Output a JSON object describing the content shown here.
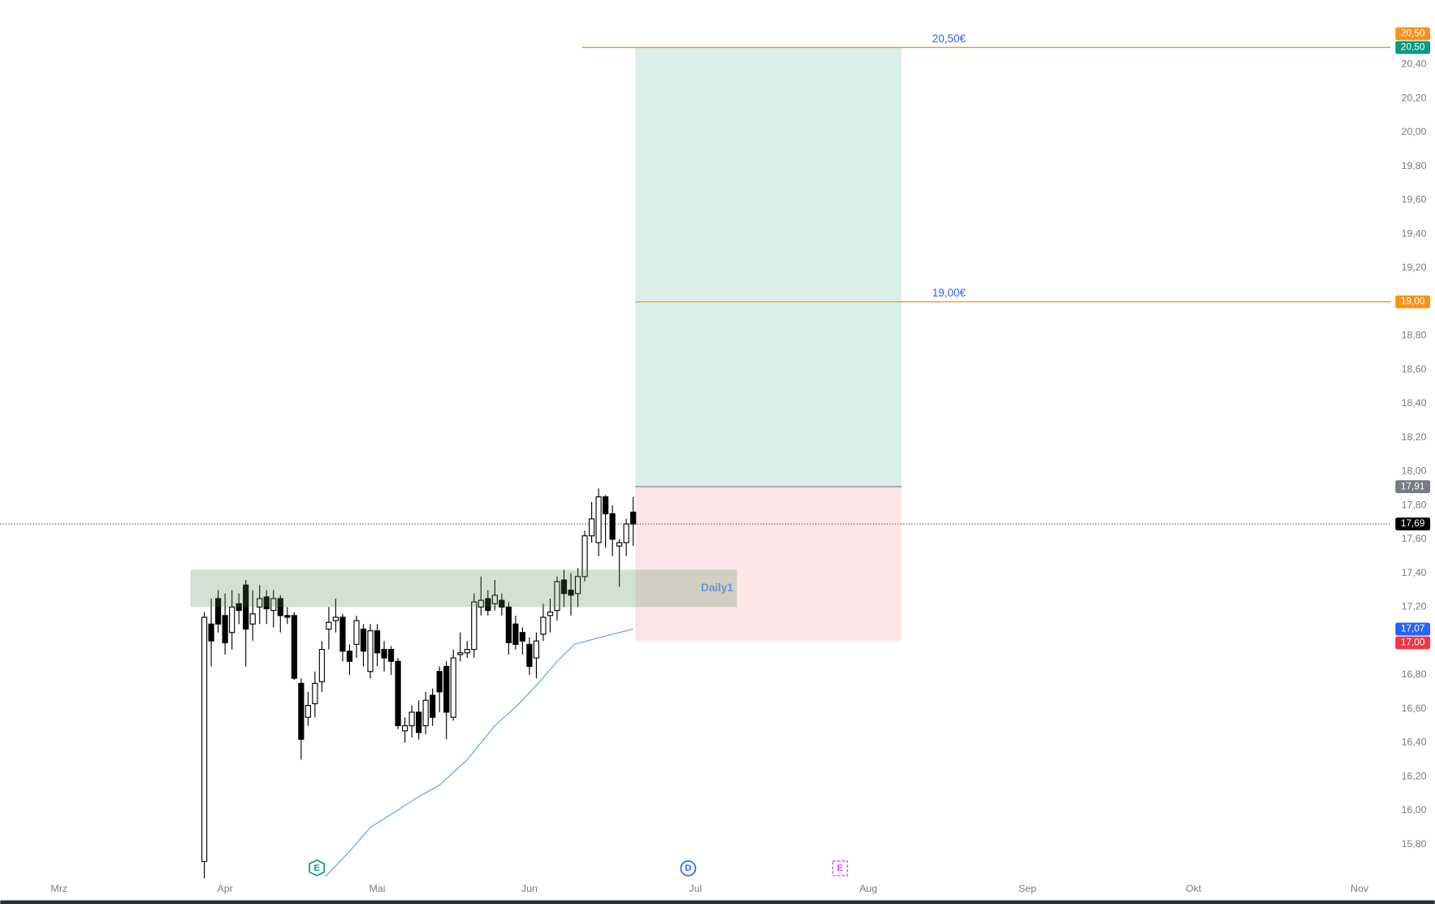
{
  "chart_data": {
    "type": "candlestick",
    "x": [
      21,
      22,
      23,
      24,
      25,
      26,
      27,
      28,
      29,
      30,
      31,
      32,
      33,
      34,
      35,
      36,
      37,
      38,
      39,
      40,
      41,
      42,
      43,
      44,
      45,
      46,
      47,
      48,
      49,
      50,
      51,
      52,
      53,
      54,
      55,
      56,
      57,
      58,
      59,
      60,
      61,
      62,
      63,
      64,
      65,
      66,
      67,
      68,
      69,
      70,
      71,
      72,
      73,
      74,
      75,
      76,
      77,
      78,
      79,
      80,
      81,
      82,
      83
    ],
    "open": [
      15.7,
      17.1,
      17.25,
      17.15,
      17.05,
      17.22,
      17.33,
      17.1,
      17.2,
      17.26,
      17.18,
      17.25,
      17.15,
      17.15,
      16.75,
      16.55,
      16.63,
      16.76,
      17.07,
      17.12,
      17.14,
      16.94,
      16.98,
      17.07,
      16.82,
      17.06,
      16.95,
      16.95,
      16.88,
      16.47,
      16.5,
      16.58,
      16.5,
      16.68,
      16.82,
      16.85,
      16.55,
      16.92,
      16.93,
      16.95,
      17.2,
      17.25,
      17.22,
      17.24,
      17.2,
      17.1,
      17.05,
      16.98,
      16.9,
      17.04,
      17.15,
      17.18,
      17.36,
      17.3,
      17.28,
      17.38,
      17.62,
      17.58,
      17.85,
      17.75,
      17.56,
      17.58,
      17.76
    ],
    "high": [
      17.17,
      17.25,
      17.3,
      17.28,
      17.3,
      17.28,
      17.36,
      17.3,
      17.33,
      17.3,
      17.3,
      17.27,
      17.2,
      17.17,
      16.78,
      16.7,
      16.82,
      17.0,
      17.2,
      17.25,
      17.16,
      16.98,
      17.15,
      17.1,
      17.1,
      17.1,
      17.0,
      16.97,
      16.9,
      16.55,
      16.62,
      16.65,
      16.7,
      16.72,
      16.85,
      16.88,
      16.95,
      17.05,
      17.0,
      17.28,
      17.38,
      17.3,
      17.36,
      17.28,
      17.23,
      17.15,
      17.08,
      17.02,
      17.05,
      17.22,
      17.25,
      17.38,
      17.42,
      17.4,
      17.43,
      17.65,
      17.82,
      17.9,
      17.86,
      17.8,
      17.6,
      17.72,
      17.85
    ],
    "low": [
      15.6,
      16.85,
      17.05,
      16.92,
      16.95,
      17.1,
      16.85,
      17.0,
      17.1,
      17.1,
      17.08,
      17.05,
      17.1,
      16.77,
      16.3,
      16.5,
      16.55,
      16.7,
      16.95,
      17.05,
      16.88,
      16.8,
      16.9,
      16.85,
      16.78,
      16.85,
      16.82,
      16.8,
      16.48,
      16.4,
      16.43,
      16.42,
      16.45,
      16.5,
      16.58,
      16.42,
      16.53,
      16.88,
      16.9,
      16.9,
      17.15,
      17.15,
      17.18,
      17.15,
      16.92,
      16.95,
      16.92,
      16.8,
      16.78,
      17.0,
      17.05,
      17.12,
      17.2,
      17.15,
      17.2,
      17.35,
      17.58,
      17.5,
      17.55,
      17.5,
      17.32,
      17.5,
      17.56
    ],
    "close": [
      17.14,
      17.0,
      17.1,
      16.99,
      17.2,
      17.18,
      17.07,
      17.16,
      17.25,
      17.19,
      17.25,
      17.15,
      17.14,
      16.78,
      16.42,
      16.62,
      16.75,
      16.95,
      17.11,
      17.14,
      16.94,
      16.88,
      17.12,
      16.94,
      17.06,
      16.93,
      16.9,
      16.88,
      16.5,
      16.5,
      16.58,
      16.46,
      16.65,
      16.55,
      16.7,
      16.58,
      16.9,
      16.93,
      16.95,
      17.23,
      17.24,
      17.18,
      17.27,
      17.2,
      16.99,
      16.98,
      17.0,
      16.85,
      17.0,
      17.14,
      17.17,
      17.35,
      17.28,
      17.27,
      17.38,
      17.62,
      17.72,
      17.85,
      17.75,
      17.6,
      17.58,
      17.69,
      17.69
    ],
    "moving_average": {
      "color": "#5b9cf6",
      "x": [
        38.5,
        42,
        45,
        48.5,
        51.5,
        55,
        59,
        63,
        66.5,
        69.5,
        72,
        74.5,
        79,
        83
      ],
      "values": [
        15.61,
        15.76,
        15.9,
        15.99,
        16.07,
        16.15,
        16.3,
        16.5,
        16.63,
        16.76,
        16.88,
        16.98,
        17.03,
        17.07
      ]
    },
    "zones": [
      {
        "name": "Daily1",
        "x": [
          19,
          98
        ],
        "ylim": [
          17.2,
          17.42
        ]
      }
    ],
    "position": {
      "x": [
        83.3,
        121.8
      ],
      "entry": 17.91,
      "target": 20.5,
      "stop": 17.0
    },
    "hlines": [
      {
        "value": 20.5,
        "label": "20,50€",
        "x": 75.6
      },
      {
        "value": 19.0,
        "label": "19,00€",
        "x": 83.3
      }
    ],
    "last_price": 17.69,
    "price_tags": [
      {
        "value": 20.5,
        "label": "20,50",
        "color": "#089981"
      },
      {
        "value": 20.5,
        "label": "20,50",
        "color": "#f7931a"
      },
      {
        "value": 19.0,
        "label": "19,00",
        "color": "#f7931a"
      },
      {
        "value": 17.91,
        "label": "17,91",
        "color": "#787b86"
      },
      {
        "value": 17.69,
        "label": "17,69",
        "color": "#000000"
      },
      {
        "value": 17.07,
        "label": "17,07",
        "color": "#2962ff"
      },
      {
        "value": 17.0,
        "label": "17,00",
        "color": "#f23645"
      }
    ],
    "event_markers": [
      "E",
      "D",
      "E"
    ],
    "xlim": [
      -8.5,
      192
    ],
    "xticks": [
      {
        "value": 0,
        "label": "Mrz"
      },
      {
        "value": 24,
        "label": "Apr"
      },
      {
        "value": 46,
        "label": "Mai"
      },
      {
        "value": 68,
        "label": "Jun"
      },
      {
        "value": 92,
        "label": "Jul"
      },
      {
        "value": 117,
        "label": "Aug"
      },
      {
        "value": 140,
        "label": "Sep"
      },
      {
        "value": 164,
        "label": "Okt"
      },
      {
        "value": 188,
        "label": "Nov"
      }
    ],
    "ylim": [
      15.6,
      20.78
    ],
    "yticks": [
      {
        "value": 15.8,
        "label": "15,80"
      },
      {
        "value": 16.0,
        "label": "16,00"
      },
      {
        "value": 16.2,
        "label": "16,20"
      },
      {
        "value": 16.4,
        "label": "16,40"
      },
      {
        "value": 16.6,
        "label": "16,60"
      },
      {
        "value": 16.8,
        "label": "16,80"
      },
      {
        "value": 17.0,
        "label": "17,00"
      },
      {
        "value": 17.2,
        "label": "17,20"
      },
      {
        "value": 17.4,
        "label": "17,40"
      },
      {
        "value": 17.6,
        "label": "17,60"
      },
      {
        "value": 17.8,
        "label": "17,80"
      },
      {
        "value": 18.0,
        "label": "18,00"
      },
      {
        "value": 18.2,
        "label": "18,20"
      },
      {
        "value": 18.4,
        "label": "18,40"
      },
      {
        "value": 18.6,
        "label": "18,60"
      },
      {
        "value": 18.8,
        "label": "18,80"
      },
      {
        "value": 19.0,
        "label": "19,00"
      },
      {
        "value": 19.2,
        "label": "19,20"
      },
      {
        "value": 19.4,
        "label": "19,40"
      },
      {
        "value": 19.6,
        "label": "19,60"
      },
      {
        "value": 19.8,
        "label": "19,80"
      },
      {
        "value": 20.0,
        "label": "20,00"
      },
      {
        "value": 20.2,
        "label": "20,20"
      },
      {
        "value": 20.4,
        "label": "20,40"
      }
    ],
    "up_color": "#ffffff",
    "down_color": "#000000"
  }
}
